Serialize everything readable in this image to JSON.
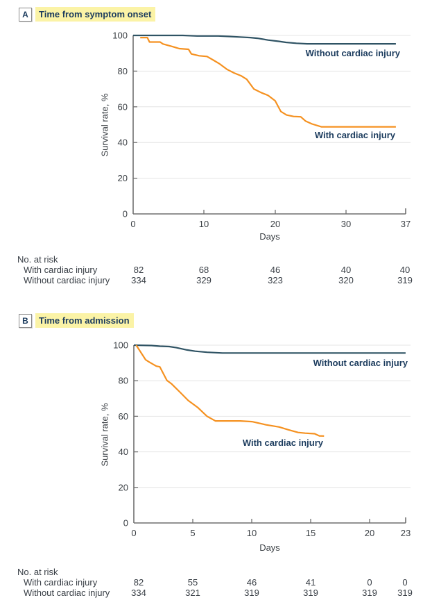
{
  "figure_accent_colors": {
    "with_injury_line": "#F59120",
    "without_injury_line": "#2F5364",
    "highlight": "#FBF3A6",
    "title_text": "#1C3C5E",
    "axis_line": "#6F6F6F",
    "gridline": "#E4E4E4"
  },
  "chart_data": [
    {
      "type": "line",
      "panel": "A",
      "title": "Time from symptom onset",
      "xlabel": "Days",
      "ylabel": "Survival rate, %",
      "xlim": [
        0,
        37
      ],
      "ylim": [
        0,
        100
      ],
      "xticks": [
        0,
        10,
        20,
        30,
        37
      ],
      "yticks": [
        0,
        20,
        40,
        60,
        80,
        100
      ],
      "grid": "horizontal",
      "legend": "inline-labels",
      "series": [
        {
          "name": "Without cardiac injury",
          "color": "#2F5364",
          "x": [
            0,
            7,
            9,
            12,
            13.5,
            15,
            16.5,
            17.5,
            19,
            20.5,
            21.5,
            23,
            24.5,
            37
          ],
          "y": [
            100,
            100,
            99.7,
            99.7,
            99.4,
            99.1,
            98.8,
            98.4,
            97.4,
            96.7,
            96.1,
            95.6,
            95.3,
            95.3
          ]
        },
        {
          "name": "With cardiac injury",
          "color": "#F59120",
          "x": [
            1,
            2,
            2.3,
            3.8,
            4.2,
            5.5,
            6.5,
            7.8,
            8.2,
            9.3,
            10.4,
            11.2,
            12.2,
            13.2,
            14.2,
            15.2,
            16,
            17,
            18,
            19,
            20,
            20.8,
            21.6,
            22.6,
            23.6,
            24.3,
            25.2,
            26.5,
            37
          ],
          "y": [
            98.8,
            98.8,
            96.3,
            96.3,
            95.2,
            93.8,
            92.6,
            92.2,
            89.6,
            88.6,
            88.2,
            86.4,
            84,
            81,
            79,
            77.4,
            75.4,
            70,
            68,
            66.4,
            63.4,
            57.4,
            55.4,
            54.6,
            54.4,
            52,
            50.4,
            48.8,
            48.8
          ]
        }
      ],
      "risk_table": {
        "title": "No. at risk",
        "columns_at_days": [
          0,
          10,
          20,
          30,
          37
        ],
        "rows": [
          {
            "label": "With cardiac injury",
            "values": [
              "82",
              "68",
              "46",
              "40",
              "40"
            ]
          },
          {
            "label": "Without cardiac injury",
            "values": [
              "334",
              "329",
              "323",
              "320",
              "319"
            ]
          }
        ]
      }
    },
    {
      "type": "line",
      "panel": "B",
      "title": "Time from admission",
      "xlabel": "Days",
      "ylabel": "Survival rate, %",
      "xlim": [
        0,
        23
      ],
      "ylim": [
        0,
        100
      ],
      "xticks": [
        0,
        5,
        10,
        15,
        20,
        23
      ],
      "yticks": [
        0,
        20,
        40,
        60,
        80,
        100
      ],
      "grid": "horizontal",
      "legend": "inline-labels",
      "series": [
        {
          "name": "Without cardiac injury",
          "color": "#2F5364",
          "x": [
            0,
            1.5,
            2.2,
            3.0,
            3.6,
            4.5,
            5.2,
            6.2,
            7.5,
            23
          ],
          "y": [
            100,
            99.8,
            99.4,
            99.2,
            98.6,
            97.3,
            96.6,
            96.0,
            95.6,
            95.6
          ]
        },
        {
          "name": "With cardiac injury",
          "color": "#F59120",
          "x": [
            0.2,
            1.0,
            1.3,
            1.9,
            2.2,
            2.8,
            3.2,
            3.9,
            4.6,
            5.4,
            6.2,
            6.9,
            9.0,
            10.0,
            11.2,
            12.3,
            13.1,
            13.9,
            14.5,
            15.3,
            15.7,
            16.1
          ],
          "y": [
            100,
            91.8,
            90.5,
            88.2,
            87.8,
            80.2,
            78.2,
            73.6,
            68.9,
            65,
            60,
            57.4,
            57.4,
            57.0,
            55.2,
            54.0,
            52.4,
            50.9,
            50.5,
            50.2,
            49.0,
            48.9
          ]
        }
      ],
      "risk_table": {
        "title": "No. at risk",
        "columns_at_days": [
          0,
          5,
          10,
          15,
          20,
          23
        ],
        "rows": [
          {
            "label": "With cardiac injury",
            "values": [
              "82",
              "55",
              "46",
              "41",
              "0",
              "0"
            ]
          },
          {
            "label": "Without cardiac injury",
            "values": [
              "334",
              "321",
              "319",
              "319",
              "319",
              "319"
            ]
          }
        ]
      }
    }
  ]
}
